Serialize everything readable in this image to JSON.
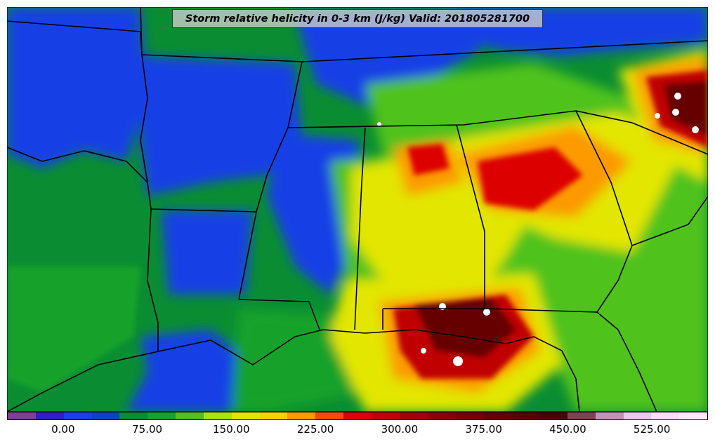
{
  "title": "Storm relative helicity in 0-3 km (J/kg) Valid: 201805281700",
  "colorbar": {
    "colors": [
      "#7d3f98",
      "#2f1fc6",
      "#1541e6",
      "#0b43c8",
      "#0a8d32",
      "#16a22b",
      "#4fc21e",
      "#a8e414",
      "#e2e600",
      "#fbd000",
      "#fc9a00",
      "#f84a00",
      "#dd0000",
      "#c00000",
      "#a20000",
      "#8a0000",
      "#760000",
      "#660000",
      "#560006",
      "#4a000a",
      "#834050",
      "#c890b8",
      "#f0c6f0",
      "#fcdcfc",
      "#ffe8ff"
    ],
    "ticks": [
      "0.00",
      "75.00",
      "150.00",
      "225.00",
      "300.00",
      "375.00",
      "450.00",
      "525.00"
    ]
  },
  "palette": {
    "land_blue": "#1541e6",
    "land_green": "#0a8d32",
    "light_green": "#4fc21e",
    "yellow": "#e2e600",
    "orange": "#fc9a00",
    "red": "#dd0000",
    "dark_red": "#660000",
    "border": "#000000"
  }
}
